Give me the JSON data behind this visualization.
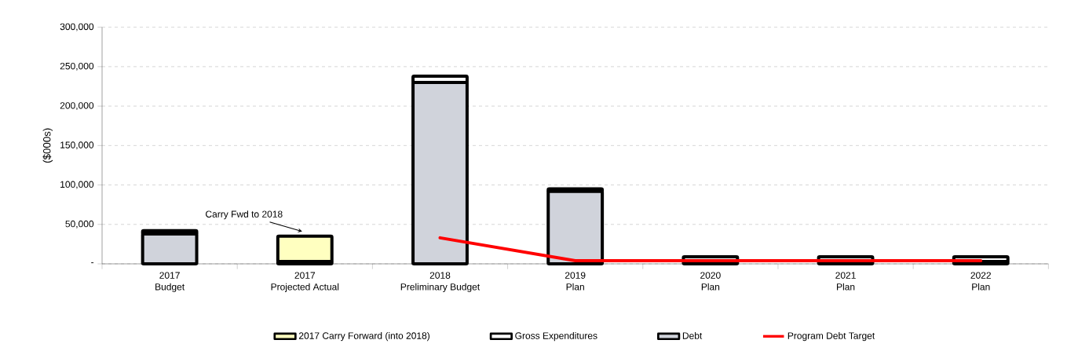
{
  "chart_data": {
    "type": "bar",
    "stacked": true,
    "ylabel": "($000s)",
    "categories": [
      "2017\nBudget",
      "2017\nProjected Actual",
      "2018\nPreliminary Budget",
      "2019\nPlan",
      "2020\nPlan",
      "2021\nPlan",
      "2022\nPlan"
    ],
    "series": [
      {
        "name": "Debt",
        "color": "#d0d3db",
        "values": [
          38000,
          null,
          230000,
          92000,
          3000,
          3000,
          3000
        ]
      },
      {
        "name": "Gross Expenditures",
        "color": "#ffffff",
        "values": [
          4000,
          3000,
          8000,
          3000,
          6000,
          6000,
          6000
        ]
      },
      {
        "name": "2017 Carry Forward (into 2018)",
        "color": "#ffffc0",
        "values": [
          null,
          32000,
          null,
          null,
          null,
          null,
          null
        ]
      },
      {
        "name": "Program Debt Target",
        "type": "line",
        "color": "#ff0000",
        "values": [
          null,
          null,
          33000,
          4000,
          4000,
          4000,
          4000
        ]
      }
    ],
    "ylim": [
      0,
      300000
    ],
    "yticks": [
      {
        "value": 0,
        "label": "-"
      },
      {
        "value": 50000,
        "label": "50,000"
      },
      {
        "value": 100000,
        "label": "100,000"
      },
      {
        "value": 150000,
        "label": "150,000"
      },
      {
        "value": 200000,
        "label": "200,000"
      },
      {
        "value": 250000,
        "label": "250,000"
      },
      {
        "value": 300000,
        "label": "300,000"
      }
    ],
    "grid": "y",
    "legend": "bottom",
    "annotations": [
      "Carry Fwd to 2018"
    ]
  }
}
